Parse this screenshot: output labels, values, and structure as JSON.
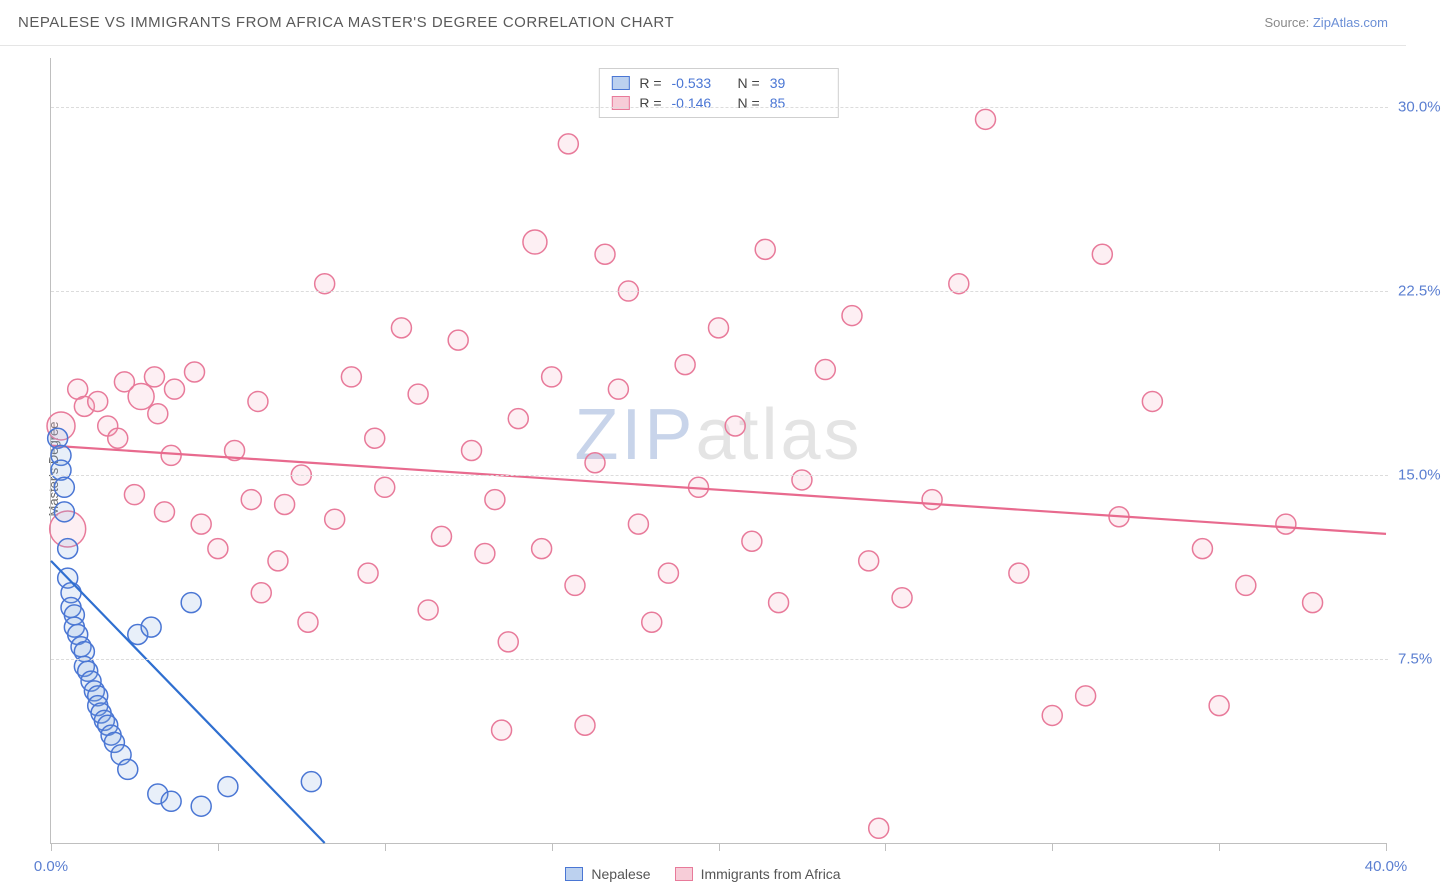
{
  "header": {
    "title": "NEPALESE VS IMMIGRANTS FROM AFRICA MASTER'S DEGREE CORRELATION CHART",
    "source_prefix": "Source: ",
    "source_link": "ZipAtlas.com"
  },
  "ylabel": "Master's Degree",
  "watermark": {
    "zip": "ZIP",
    "atlas": "atlas"
  },
  "chart": {
    "type": "scatter",
    "background_color": "#ffffff",
    "grid_color": "#dcdcdc",
    "axis_color": "#bfbfbf",
    "xlim": [
      0,
      40
    ],
    "ylim": [
      0,
      32
    ],
    "xtick_positions": [
      0,
      5,
      10,
      15,
      20,
      25,
      30,
      35,
      40
    ],
    "xtick_labels": {
      "0": "0.0%",
      "40": "40.0%"
    },
    "ygrid_positions": [
      7.5,
      15.0,
      22.5,
      30.0
    ],
    "ygrid_labels": [
      "7.5%",
      "15.0%",
      "22.5%",
      "30.0%"
    ],
    "tick_label_color": "#5b7fd1",
    "tick_label_fontsize": 15,
    "label_fontsize": 13,
    "label_color": "#6a6a6a",
    "marker_radius": 10,
    "marker_stroke_width": 1.5,
    "marker_fill_opacity": 0.18,
    "trend_line_width": 2.2
  },
  "series": [
    {
      "key": "nepalese",
      "label": "Nepalese",
      "fill_color": "#7ea6e0",
      "stroke_color": "#4a76d4",
      "line_color": "#2f6fd0",
      "R": "-0.533",
      "N": "39",
      "trend": {
        "x1": 0,
        "y1": 11.5,
        "x2": 8.2,
        "y2": 0
      },
      "points": [
        [
          0.2,
          16.5
        ],
        [
          0.3,
          15.8
        ],
        [
          0.3,
          15.2
        ],
        [
          0.4,
          14.5
        ],
        [
          0.4,
          13.5
        ],
        [
          0.5,
          12.0
        ],
        [
          0.5,
          10.8
        ],
        [
          0.6,
          10.2
        ],
        [
          0.6,
          9.6
        ],
        [
          0.7,
          9.3
        ],
        [
          0.7,
          8.8
        ],
        [
          0.8,
          8.5
        ],
        [
          0.9,
          8.0
        ],
        [
          1.0,
          7.8
        ],
        [
          1.0,
          7.2
        ],
        [
          1.1,
          7.0
        ],
        [
          1.2,
          6.6
        ],
        [
          1.3,
          6.2
        ],
        [
          1.4,
          6.0
        ],
        [
          1.4,
          5.6
        ],
        [
          1.5,
          5.3
        ],
        [
          1.6,
          5.0
        ],
        [
          1.7,
          4.8
        ],
        [
          1.8,
          4.4
        ],
        [
          1.9,
          4.1
        ],
        [
          2.1,
          3.6
        ],
        [
          2.3,
          3.0
        ],
        [
          2.6,
          8.5
        ],
        [
          3.0,
          8.8
        ],
        [
          3.2,
          2.0
        ],
        [
          3.6,
          1.7
        ],
        [
          4.2,
          9.8
        ],
        [
          4.5,
          1.5
        ],
        [
          5.3,
          2.3
        ],
        [
          7.8,
          2.5
        ]
      ]
    },
    {
      "key": "africa",
      "label": "Immigrants from Africa",
      "fill_color": "#f4a9bb",
      "stroke_color": "#e87a9a",
      "line_color": "#e86a8e",
      "R": "-0.146",
      "N": "85",
      "trend": {
        "x1": 0,
        "y1": 16.2,
        "x2": 40,
        "y2": 12.6
      },
      "points": [
        [
          0.3,
          17.0,
          14
        ],
        [
          0.5,
          12.8,
          18
        ],
        [
          0.8,
          18.5
        ],
        [
          1.0,
          17.8
        ],
        [
          1.4,
          18.0
        ],
        [
          1.7,
          17.0
        ],
        [
          2.0,
          16.5
        ],
        [
          2.2,
          18.8
        ],
        [
          2.5,
          14.2
        ],
        [
          2.7,
          18.2,
          13
        ],
        [
          3.1,
          19.0
        ],
        [
          3.2,
          17.5
        ],
        [
          3.4,
          13.5
        ],
        [
          3.6,
          15.8
        ],
        [
          3.7,
          18.5
        ],
        [
          4.3,
          19.2
        ],
        [
          4.5,
          13.0
        ],
        [
          5.0,
          12.0
        ],
        [
          5.5,
          16.0
        ],
        [
          6.0,
          14.0
        ],
        [
          6.2,
          18.0
        ],
        [
          6.3,
          10.2
        ],
        [
          6.8,
          11.5
        ],
        [
          7.0,
          13.8
        ],
        [
          7.5,
          15.0
        ],
        [
          7.7,
          9.0
        ],
        [
          8.2,
          22.8
        ],
        [
          8.5,
          13.2
        ],
        [
          9.0,
          19.0
        ],
        [
          9.5,
          11.0
        ],
        [
          9.7,
          16.5
        ],
        [
          10.0,
          14.5
        ],
        [
          10.5,
          21.0
        ],
        [
          11.0,
          18.3
        ],
        [
          11.3,
          9.5
        ],
        [
          11.7,
          12.5
        ],
        [
          12.2,
          20.5
        ],
        [
          12.6,
          16.0
        ],
        [
          13.0,
          11.8
        ],
        [
          13.3,
          14.0
        ],
        [
          13.5,
          4.6
        ],
        [
          13.7,
          8.2
        ],
        [
          14.0,
          17.3
        ],
        [
          14.5,
          24.5,
          12
        ],
        [
          14.7,
          12.0
        ],
        [
          15.0,
          19.0
        ],
        [
          15.5,
          28.5
        ],
        [
          15.7,
          10.5
        ],
        [
          16.0,
          4.8
        ],
        [
          16.3,
          15.5
        ],
        [
          16.6,
          24.0
        ],
        [
          17.0,
          18.5
        ],
        [
          17.3,
          22.5
        ],
        [
          17.6,
          13.0
        ],
        [
          18.0,
          9.0
        ],
        [
          18.5,
          11.0
        ],
        [
          19.0,
          19.5
        ],
        [
          19.4,
          14.5
        ],
        [
          20.0,
          21.0
        ],
        [
          20.5,
          17.0
        ],
        [
          21.0,
          12.3
        ],
        [
          21.4,
          24.2
        ],
        [
          21.8,
          9.8
        ],
        [
          22.5,
          14.8
        ],
        [
          23.2,
          19.3
        ],
        [
          24.0,
          21.5
        ],
        [
          24.5,
          11.5
        ],
        [
          24.8,
          0.6
        ],
        [
          25.5,
          10.0
        ],
        [
          26.4,
          14.0
        ],
        [
          27.2,
          22.8
        ],
        [
          28.0,
          29.5
        ],
        [
          29.0,
          11.0
        ],
        [
          30.0,
          5.2
        ],
        [
          31.0,
          6.0
        ],
        [
          31.5,
          24.0
        ],
        [
          32.0,
          13.3
        ],
        [
          33.0,
          18.0
        ],
        [
          34.5,
          12.0
        ],
        [
          35.0,
          5.6
        ],
        [
          35.8,
          10.5
        ],
        [
          37.0,
          13.0
        ],
        [
          37.8,
          9.8
        ]
      ]
    }
  ],
  "stats_box": {
    "labels": {
      "R": "R =",
      "N": "N ="
    }
  },
  "legend": {
    "swatch_border_colors": {
      "nepalese": "#4a76d4",
      "africa": "#e87a9a"
    },
    "swatch_fill_colors": {
      "nepalese": "#bcd1ef",
      "africa": "#f7cdd8"
    }
  }
}
